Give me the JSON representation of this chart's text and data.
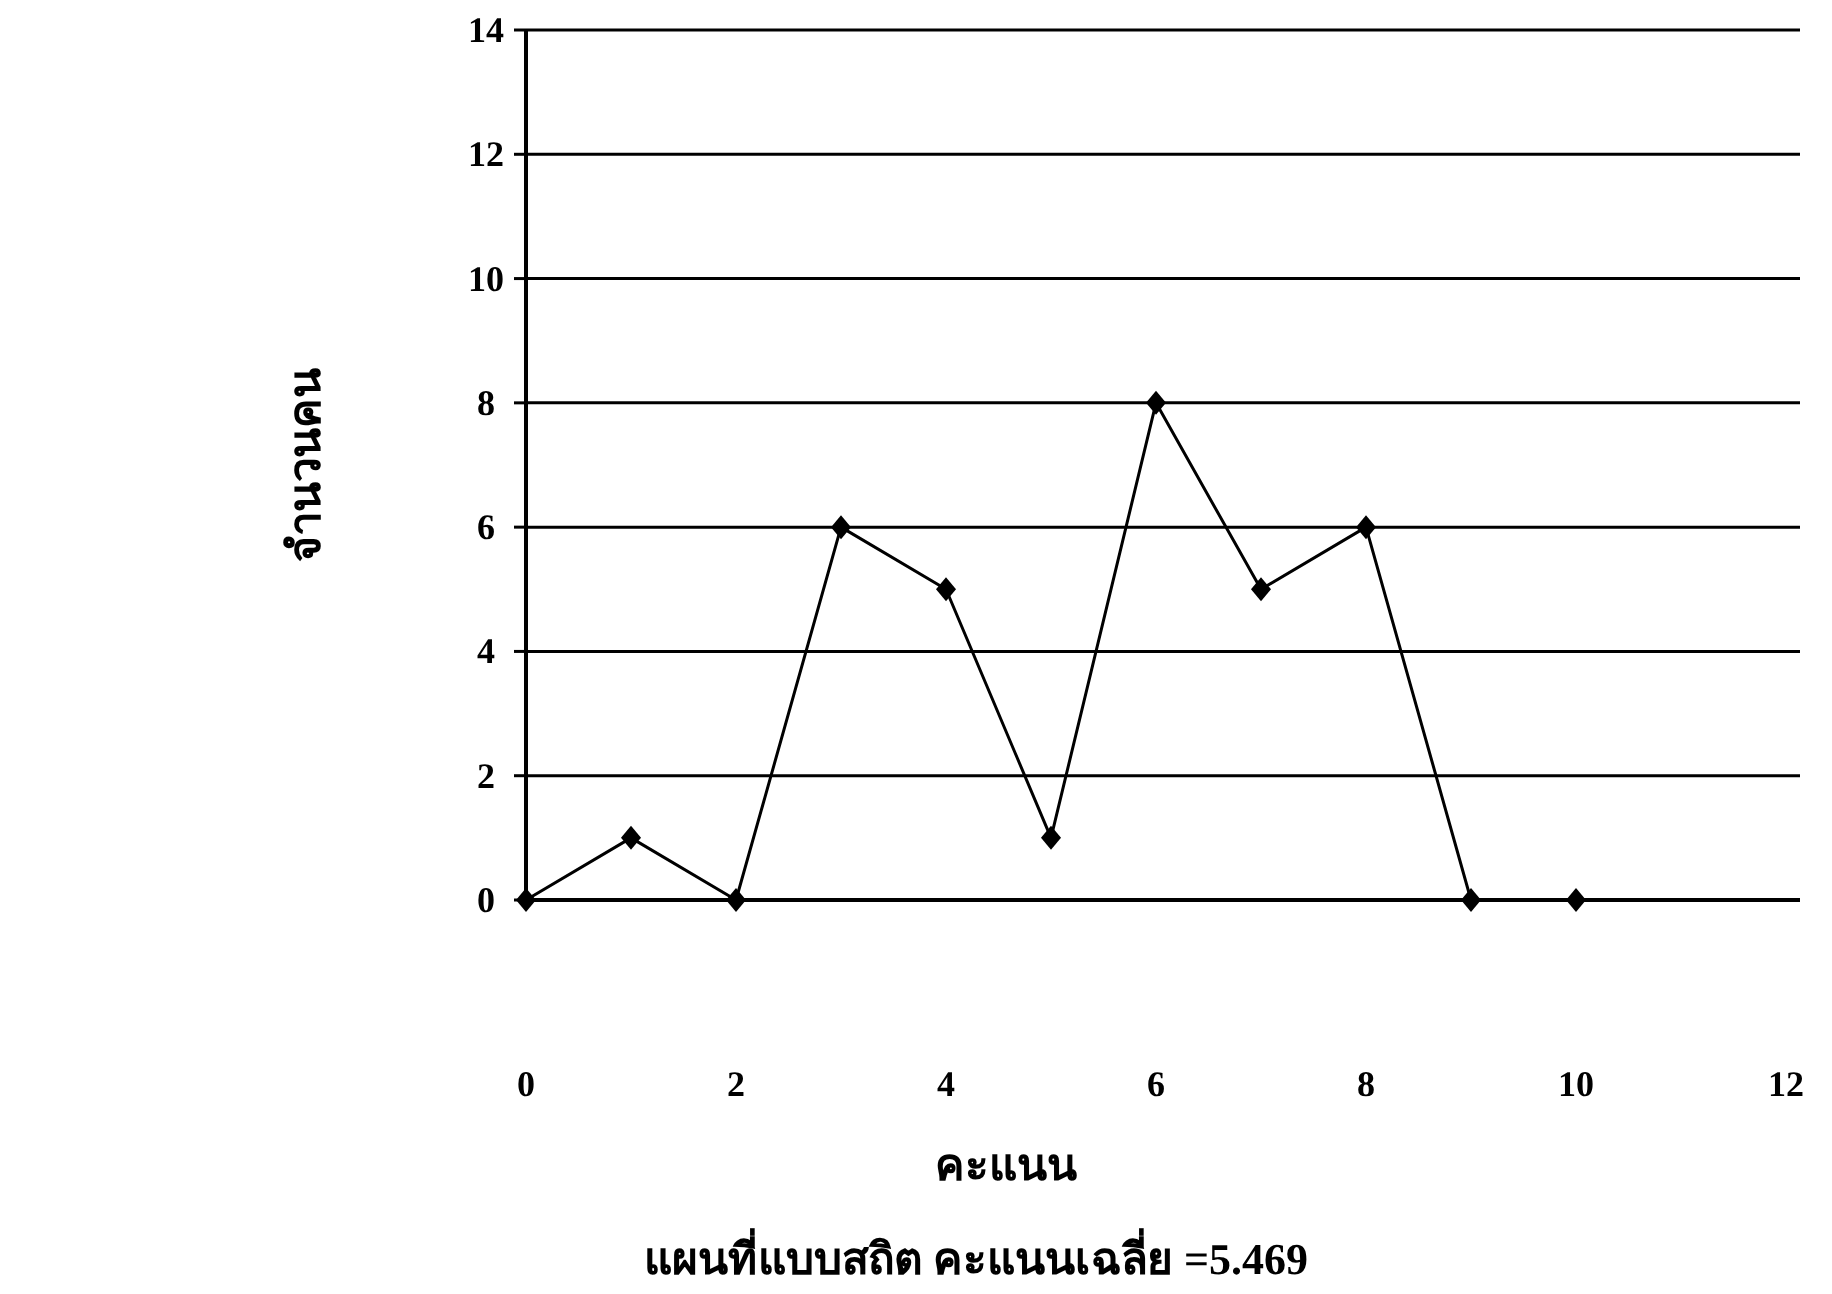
{
  "chart_data": {
    "type": "line",
    "title": "แผนที่แบบสถิต คะแนนเฉลี่ย =5.469",
    "xlabel": "คะแนน",
    "ylabel": "จำนวนคน",
    "x": [
      0,
      1,
      2,
      3,
      4,
      5,
      6,
      7,
      8,
      9,
      10
    ],
    "values": [
      0,
      1,
      0,
      6,
      5,
      1,
      8,
      5,
      6,
      0,
      0
    ],
    "color": "#000000",
    "marker": "diamond",
    "grid": "y",
    "xlim": [
      0,
      12
    ],
    "ylim": [
      0,
      14
    ],
    "xticks": [
      0,
      2,
      4,
      6,
      8,
      10,
      12
    ],
    "yticks": [
      0,
      2,
      4,
      6,
      8,
      10,
      12,
      14
    ]
  }
}
